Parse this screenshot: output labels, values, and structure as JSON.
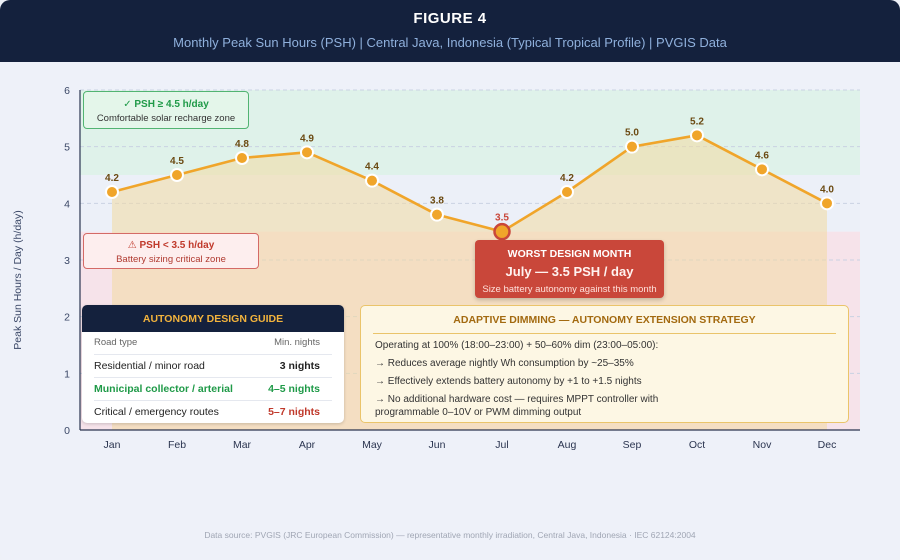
{
  "header": {
    "figure_label": "FIGURE 4",
    "subtitle": "Monthly Peak Sun Hours (PSH) | Central Java, Indonesia (Typical Tropical Profile) | PVGIS Data"
  },
  "chart_data": {
    "type": "line",
    "title": "Monthly Peak Sun Hours (PSH)",
    "xlabel": "",
    "ylabel": "Peak Sun Hours / Day (h/day)",
    "categories": [
      "Jan",
      "Feb",
      "Mar",
      "Apr",
      "May",
      "Jun",
      "Jul",
      "Aug",
      "Sep",
      "Oct",
      "Nov",
      "Dec"
    ],
    "series": [
      {
        "name": "PSH",
        "values": [
          4.2,
          4.5,
          4.8,
          4.9,
          4.4,
          3.8,
          3.5,
          4.2,
          5.0,
          5.2,
          4.6,
          4.0
        ]
      }
    ],
    "ylim": [
      0,
      6
    ],
    "yticks": [
      0,
      1,
      2,
      3,
      4,
      5,
      6
    ],
    "grid": true,
    "zones": [
      {
        "name": "comfortable",
        "from": 4.5,
        "to": 6,
        "color": "#dff2ea"
      },
      {
        "name": "critical",
        "from": 0,
        "to": 3.5,
        "color": "#f6e3ea"
      }
    ],
    "line_color": "#f0a52a",
    "fill_color": "#f2dba0",
    "worst_index": 6,
    "worst_color": "#c9473a"
  },
  "annotations": {
    "good_zone": {
      "title": "✓ PSH ≥ 4.5 h/day",
      "subtitle": "Comfortable solar recharge zone"
    },
    "critical_zone": {
      "title": "⚠ PSH < 3.5 h/day",
      "subtitle": "Battery sizing critical zone"
    },
    "worst_month": {
      "title": "WORST DESIGN MONTH",
      "value": "July — 3.5 PSH / day",
      "note": "Size battery autonomy against this month"
    }
  },
  "autonomy_guide": {
    "title": "AUTONOMY DESIGN GUIDE",
    "col_road": "Road type",
    "col_nights": "Min. nights",
    "rows": [
      {
        "road": "Residential / minor road",
        "nights": "3 nights"
      },
      {
        "road": "Municipal collector / arterial",
        "nights": "4–5 nights"
      },
      {
        "road": "Critical / emergency routes",
        "nights": "5–7 nights"
      }
    ]
  },
  "dimming": {
    "title": "ADAPTIVE DIMMING — AUTONOMY EXTENSION STRATEGY",
    "intro": "Operating at 100% (18:00–23:00) + 50–60% dim (23:00–05:00):",
    "point1": "→ Reduces average nightly Wh consumption by ~25–35%",
    "point2": "→ Effectively extends battery autonomy by +1 to +1.5 nights",
    "point3": "→ No additional hardware cost — requires MPPT controller with",
    "point3b": "programmable 0–10V or PWM dimming output"
  },
  "footer": {
    "source": "Data source: PVGIS (JRC European Commission) — representative monthly irradiation, Central Java, Indonesia · IEC 62124:2004"
  }
}
